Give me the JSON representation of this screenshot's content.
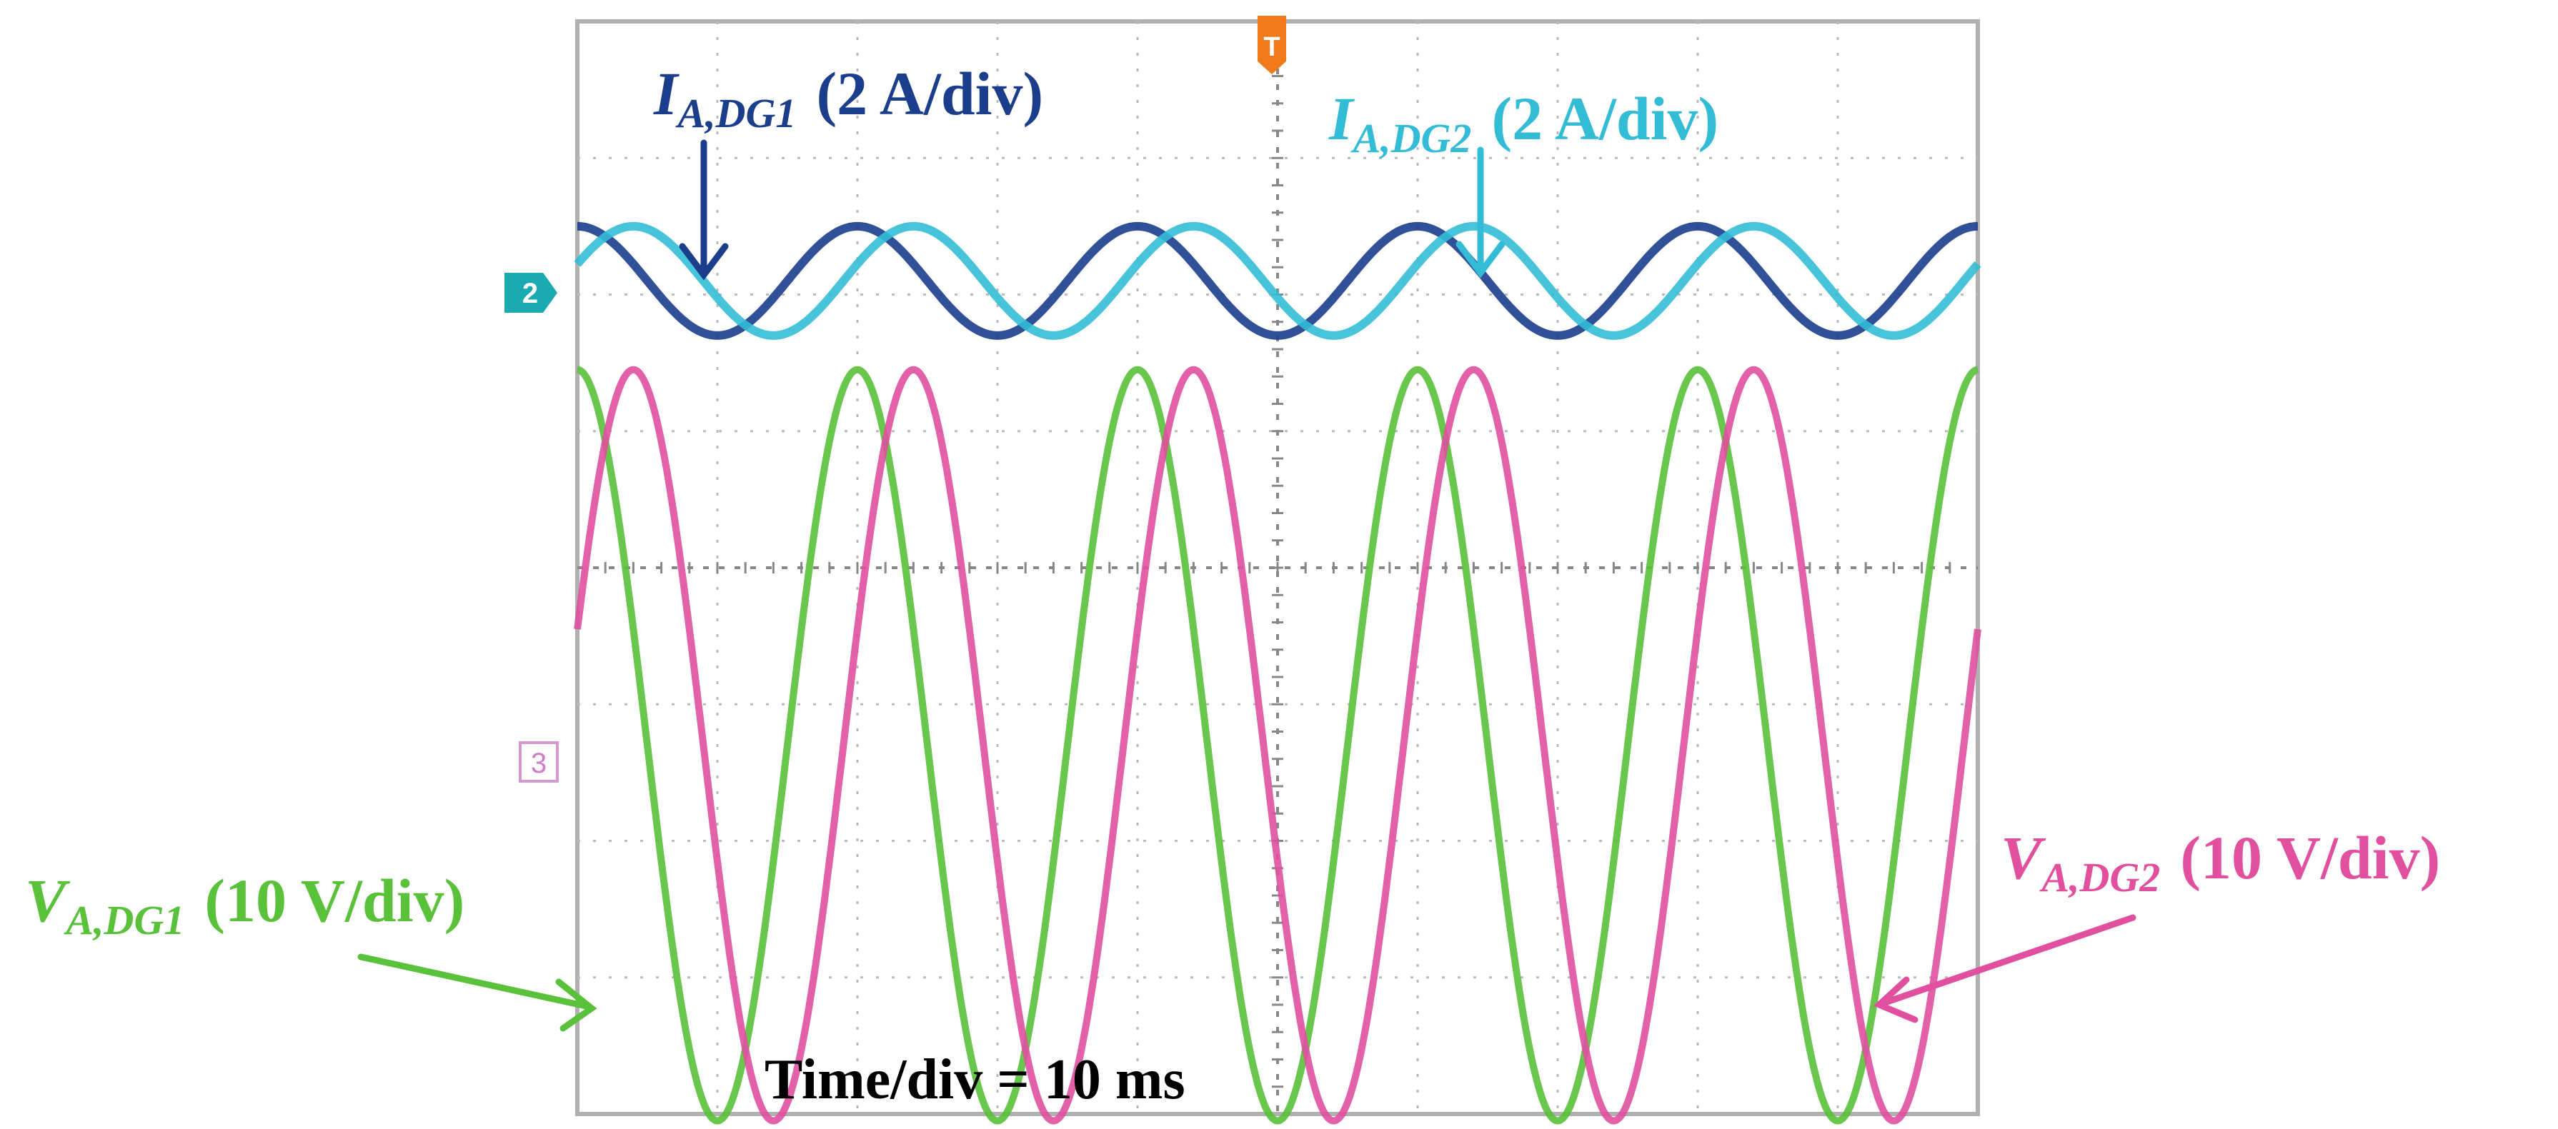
{
  "chart_data": {
    "type": "line",
    "title": "",
    "time_per_div": "Time/div = 10 ms",
    "grid": true,
    "divisions": {
      "x": 10,
      "y": 8
    },
    "x_range_ms": [
      0,
      100
    ],
    "frequency_hz": 50,
    "phase_shift_ms": 4,
    "channel_markers": {
      "ch2": "2",
      "ch3": "3",
      "trigger": "T"
    },
    "series": [
      {
        "key": "i_dg1",
        "symbol": "I",
        "subscript": "A,DG1",
        "scale": "(2 A/div)",
        "color": "#1a3d8c",
        "amplitude_div": 0.4,
        "offset_div": 2.1,
        "phase_ms": 0
      },
      {
        "key": "i_dg2",
        "symbol": "I",
        "subscript": "A,DG2",
        "scale": "(2 A/div)",
        "color": "#33bcd6",
        "amplitude_div": 0.4,
        "offset_div": 2.1,
        "phase_ms": 4
      },
      {
        "key": "v_dg1",
        "symbol": "V",
        "subscript": "A,DG1",
        "scale": "(10 V/div)",
        "color": "#59c13a",
        "amplitude_div": 2.75,
        "offset_div": -1.3,
        "phase_ms": 0
      },
      {
        "key": "v_dg2",
        "symbol": "V",
        "subscript": "A,DG2",
        "scale": "(10 V/div)",
        "color": "#e0509e",
        "amplitude_div": 2.75,
        "offset_div": -1.3,
        "phase_ms": 4
      }
    ]
  }
}
